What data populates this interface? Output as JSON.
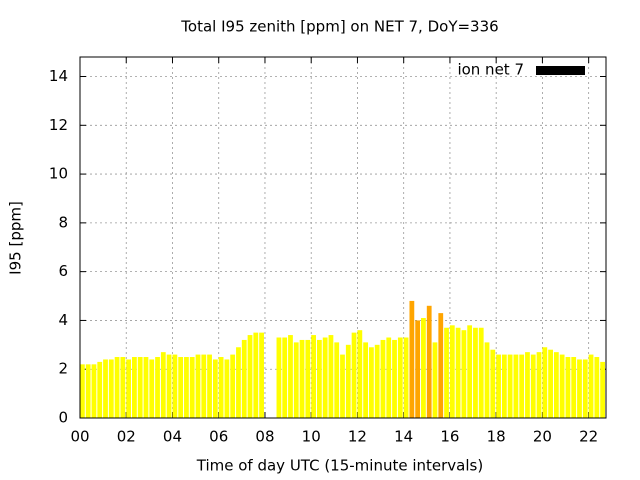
{
  "chart_data": {
    "type": "bar",
    "title": "Total I95 zenith [ppm] on NET 7, DoY=336",
    "xlabel": "Time of day UTC (15-minute intervals)",
    "ylabel": "I95 [ppm]",
    "legend": "top-right",
    "grid": true,
    "xlim": [
      0,
      22.75
    ],
    "ylim": [
      0,
      14.8
    ],
    "xticks": [
      {
        "value": 0,
        "label": "00"
      },
      {
        "value": 2,
        "label": "02"
      },
      {
        "value": 4,
        "label": "04"
      },
      {
        "value": 6,
        "label": "06"
      },
      {
        "value": 8,
        "label": "08"
      },
      {
        "value": 10,
        "label": "10"
      },
      {
        "value": 12,
        "label": "12"
      },
      {
        "value": 14,
        "label": "14"
      },
      {
        "value": 16,
        "label": "16"
      },
      {
        "value": 18,
        "label": "18"
      },
      {
        "value": 20,
        "label": "20"
      },
      {
        "value": 22,
        "label": "22"
      }
    ],
    "yticks": [
      0,
      2,
      4,
      6,
      8,
      10,
      12,
      14
    ],
    "bar_width": 0.25,
    "x": [
      0.125,
      0.375,
      0.625,
      0.875,
      1.125,
      1.375,
      1.625,
      1.875,
      2.125,
      2.375,
      2.625,
      2.875,
      3.125,
      3.375,
      3.625,
      3.875,
      4.125,
      4.375,
      4.625,
      4.875,
      5.125,
      5.375,
      5.625,
      5.875,
      6.125,
      6.375,
      6.625,
      6.875,
      7.125,
      7.375,
      7.625,
      7.875,
      8.125,
      8.375,
      8.625,
      8.875,
      9.125,
      9.375,
      9.625,
      9.875,
      10.125,
      10.375,
      10.625,
      10.875,
      11.125,
      11.375,
      11.625,
      11.875,
      12.125,
      12.375,
      12.625,
      12.875,
      13.125,
      13.375,
      13.625,
      13.875,
      14.125,
      14.375,
      14.625,
      14.875,
      15.125,
      15.375,
      15.625,
      15.875,
      16.125,
      16.375,
      16.625,
      16.875,
      17.125,
      17.375,
      17.625,
      17.875,
      18.125,
      18.375,
      18.625,
      18.875,
      19.125,
      19.375,
      19.625,
      19.875,
      20.125,
      20.375,
      20.625,
      20.875,
      21.125,
      21.375,
      21.625,
      21.875,
      22.125,
      22.375,
      22.625
    ],
    "series": [
      {
        "name": "ion net 7",
        "color": "#000000",
        "values": [
          2.2,
          2.2,
          2.2,
          2.3,
          2.4,
          2.4,
          2.5,
          2.5,
          2.4,
          2.5,
          2.5,
          2.5,
          2.4,
          2.5,
          2.7,
          2.6,
          2.6,
          2.5,
          2.5,
          2.5,
          2.6,
          2.6,
          2.6,
          2.4,
          2.5,
          2.4,
          2.6,
          2.9,
          3.2,
          3.4,
          3.5,
          3.5,
          null,
          null,
          3.3,
          3.3,
          3.4,
          3.1,
          3.2,
          3.2,
          3.4,
          3.2,
          3.3,
          3.4,
          3.1,
          2.6,
          3.0,
          3.5,
          3.6,
          3.1,
          2.9,
          3.0,
          3.2,
          3.3,
          3.2,
          3.3,
          3.3,
          4.8,
          4.0,
          4.1,
          4.6,
          3.1,
          4.3,
          3.7,
          3.8,
          3.7,
          3.6,
          3.8,
          3.7,
          3.7,
          3.1,
          2.8,
          2.6,
          2.6,
          2.6,
          2.6,
          2.6,
          2.7,
          2.6,
          2.7,
          2.9,
          2.8,
          2.7,
          2.6,
          2.5,
          2.5,
          2.4,
          2.4,
          2.6,
          2.5,
          2.3
        ],
        "bar_colors": [
          "#ffff00",
          "#ffff00",
          "#ffff00",
          "#ffff00",
          "#ffff00",
          "#ffff00",
          "#ffff00",
          "#ffff00",
          "#ffff00",
          "#ffff00",
          "#ffff00",
          "#ffff00",
          "#ffff00",
          "#ffff00",
          "#ffff00",
          "#ffff00",
          "#ffff00",
          "#ffff00",
          "#ffff00",
          "#ffff00",
          "#ffff00",
          "#ffff00",
          "#ffff00",
          "#ffff00",
          "#ffff00",
          "#ffff00",
          "#ffff00",
          "#ffff00",
          "#ffff00",
          "#ffff00",
          "#ffff00",
          "#ffff00",
          "#ffff00",
          "#ffff00",
          "#ffff00",
          "#ffff00",
          "#ffff00",
          "#ffff00",
          "#ffff00",
          "#ffff00",
          "#ffff00",
          "#ffff00",
          "#ffff00",
          "#ffff00",
          "#ffff00",
          "#ffff00",
          "#ffff00",
          "#ffff00",
          "#ffff00",
          "#ffff00",
          "#ffff00",
          "#ffff00",
          "#ffff00",
          "#ffff00",
          "#ffff00",
          "#ffff00",
          "#ffff00",
          "#ffa500",
          "#ffa500",
          "#ffff00",
          "#ffa500",
          "#ffff00",
          "#ffa500",
          "#ffff00",
          "#ffff00",
          "#ffff00",
          "#ffff00",
          "#ffff00",
          "#ffff00",
          "#ffff00",
          "#ffff00",
          "#ffff00",
          "#ffff00",
          "#ffff00",
          "#ffff00",
          "#ffff00",
          "#ffff00",
          "#ffff00",
          "#ffff00",
          "#ffff00",
          "#ffff00",
          "#ffff00",
          "#ffff00",
          "#ffff00",
          "#ffff00",
          "#ffff00",
          "#ffff00",
          "#ffff00",
          "#ffff00",
          "#ffff00",
          "#ffff00"
        ]
      }
    ]
  }
}
